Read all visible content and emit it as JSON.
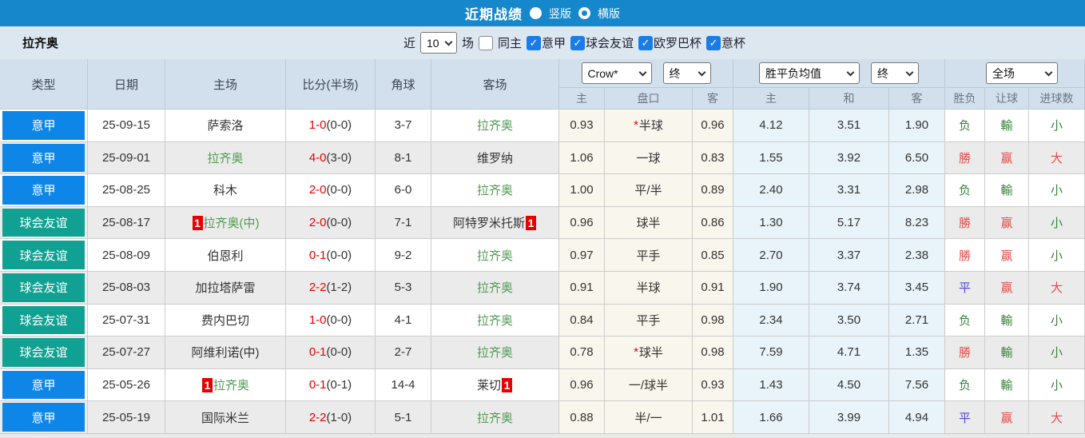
{
  "titlebar": {
    "title": "近期战绩",
    "radio_vertical": "竖版",
    "radio_horizontal": "横版",
    "vertical_selected": true,
    "horizontal_selected": false
  },
  "filterbar": {
    "team": "拉齐奥",
    "recent_label": "近",
    "recent_value": "10",
    "matches_label": "场",
    "same_home_label": "同主",
    "same_home_checked": false,
    "leagues": [
      {
        "label": "意甲",
        "checked": true
      },
      {
        "label": "球会友谊",
        "checked": true
      },
      {
        "label": "欧罗巴杯",
        "checked": true
      },
      {
        "label": "意杯",
        "checked": true
      }
    ]
  },
  "table": {
    "headers": {
      "type": "类型",
      "date": "日期",
      "home": "主场",
      "score": "比分(半场)",
      "corners": "角球",
      "away": "客场"
    },
    "dropdowns": {
      "odds_company": "Crow*",
      "odds_time": "终",
      "mean": "胜平负均值",
      "mean_time": "终",
      "scope": "全场"
    },
    "sub_headers": [
      "主",
      "盘口",
      "客",
      "主",
      "和",
      "客",
      "胜负",
      "让球",
      "进球数"
    ],
    "rows": [
      {
        "type": "意甲",
        "type_key": "serie",
        "date": "25-09-15",
        "home": {
          "name": "萨索洛",
          "green": false
        },
        "score": "1-0",
        "half": "(0-0)",
        "corners": "3-7",
        "away": {
          "name": "拉齐奥",
          "green": true
        },
        "odds_home": "0.93",
        "handicap": "半球",
        "handicap_star": true,
        "odds_away": "0.96",
        "mean_home": "4.12",
        "mean_draw": "3.51",
        "mean_away": "1.90",
        "result": {
          "t": "负",
          "c": "green"
        },
        "handicap_result": {
          "t": "輸",
          "c": "green"
        },
        "goals_result": {
          "t": "小",
          "c": "green"
        }
      },
      {
        "type": "意甲",
        "type_key": "serie",
        "date": "25-09-01",
        "home": {
          "name": "拉齐奥",
          "green": true
        },
        "score": "4-0",
        "half": "(3-0)",
        "corners": "8-1",
        "away": {
          "name": "维罗纳",
          "green": false
        },
        "odds_home": "1.06",
        "handicap": "一球",
        "handicap_star": false,
        "odds_away": "0.83",
        "mean_home": "1.55",
        "mean_draw": "3.92",
        "mean_away": "6.50",
        "result": {
          "t": "勝",
          "c": "red"
        },
        "handicap_result": {
          "t": "赢",
          "c": "red"
        },
        "goals_result": {
          "t": "大",
          "c": "red"
        }
      },
      {
        "type": "意甲",
        "type_key": "serie",
        "date": "25-08-25",
        "home": {
          "name": "科木",
          "green": false
        },
        "score": "2-0",
        "half": "(0-0)",
        "corners": "6-0",
        "away": {
          "name": "拉齐奥",
          "green": true
        },
        "odds_home": "1.00",
        "handicap": "平/半",
        "handicap_star": false,
        "odds_away": "0.89",
        "mean_home": "2.40",
        "mean_draw": "3.31",
        "mean_away": "2.98",
        "result": {
          "t": "负",
          "c": "green"
        },
        "handicap_result": {
          "t": "輸",
          "c": "green"
        },
        "goals_result": {
          "t": "小",
          "c": "green"
        }
      },
      {
        "type": "球会友谊",
        "type_key": "friendly",
        "date": "25-08-17",
        "home": {
          "name": "拉齐奥(中)",
          "green": true,
          "badge_before": "1"
        },
        "score": "2-0",
        "half": "(0-0)",
        "corners": "7-1",
        "away": {
          "name": "阿特罗米托斯",
          "green": false,
          "badge_after": "1"
        },
        "odds_home": "0.96",
        "handicap": "球半",
        "handicap_star": false,
        "odds_away": "0.86",
        "mean_home": "1.30",
        "mean_draw": "5.17",
        "mean_away": "8.23",
        "result": {
          "t": "勝",
          "c": "red"
        },
        "handicap_result": {
          "t": "赢",
          "c": "red"
        },
        "goals_result": {
          "t": "小",
          "c": "green"
        }
      },
      {
        "type": "球会友谊",
        "type_key": "friendly",
        "date": "25-08-09",
        "home": {
          "name": "伯恩利",
          "green": false
        },
        "score": "0-1",
        "half": "(0-0)",
        "corners": "9-2",
        "away": {
          "name": "拉齐奥",
          "green": true
        },
        "odds_home": "0.97",
        "handicap": "平手",
        "handicap_star": false,
        "odds_away": "0.85",
        "mean_home": "2.70",
        "mean_draw": "3.37",
        "mean_away": "2.38",
        "result": {
          "t": "勝",
          "c": "red"
        },
        "handicap_result": {
          "t": "赢",
          "c": "red"
        },
        "goals_result": {
          "t": "小",
          "c": "green"
        }
      },
      {
        "type": "球会友谊",
        "type_key": "friendly",
        "date": "25-08-03",
        "home": {
          "name": "加拉塔萨雷",
          "green": false
        },
        "score": "2-2",
        "half": "(1-2)",
        "corners": "5-3",
        "away": {
          "name": "拉齐奥",
          "green": true
        },
        "odds_home": "0.91",
        "handicap": "半球",
        "handicap_star": false,
        "odds_away": "0.91",
        "mean_home": "1.90",
        "mean_draw": "3.74",
        "mean_away": "3.45",
        "result": {
          "t": "平",
          "c": "blue"
        },
        "handicap_result": {
          "t": "赢",
          "c": "red"
        },
        "goals_result": {
          "t": "大",
          "c": "red"
        }
      },
      {
        "type": "球会友谊",
        "type_key": "friendly",
        "date": "25-07-31",
        "home": {
          "name": "费内巴切",
          "green": false
        },
        "score": "1-0",
        "half": "(0-0)",
        "corners": "4-1",
        "away": {
          "name": "拉齐奥",
          "green": true
        },
        "odds_home": "0.84",
        "handicap": "平手",
        "handicap_star": false,
        "odds_away": "0.98",
        "mean_home": "2.34",
        "mean_draw": "3.50",
        "mean_away": "2.71",
        "result": {
          "t": "负",
          "c": "green"
        },
        "handicap_result": {
          "t": "輸",
          "c": "green"
        },
        "goals_result": {
          "t": "小",
          "c": "green"
        }
      },
      {
        "type": "球会友谊",
        "type_key": "friendly",
        "date": "25-07-27",
        "home": {
          "name": "阿维利诺(中)",
          "green": false
        },
        "score": "0-1",
        "half": "(0-0)",
        "corners": "2-7",
        "away": {
          "name": "拉齐奥",
          "green": true
        },
        "odds_home": "0.78",
        "handicap": "球半",
        "handicap_star": true,
        "odds_away": "0.98",
        "mean_home": "7.59",
        "mean_draw": "4.71",
        "mean_away": "1.35",
        "result": {
          "t": "勝",
          "c": "red"
        },
        "handicap_result": {
          "t": "輸",
          "c": "green"
        },
        "goals_result": {
          "t": "小",
          "c": "green"
        }
      },
      {
        "type": "意甲",
        "type_key": "serie",
        "date": "25-05-26",
        "home": {
          "name": "拉齐奥",
          "green": true,
          "badge_before": "1"
        },
        "score": "0-1",
        "half": "(0-1)",
        "corners": "14-4",
        "away": {
          "name": "莱切",
          "green": false,
          "badge_after": "1"
        },
        "odds_home": "0.96",
        "handicap": "一/球半",
        "handicap_star": false,
        "odds_away": "0.93",
        "mean_home": "1.43",
        "mean_draw": "4.50",
        "mean_away": "7.56",
        "result": {
          "t": "负",
          "c": "green"
        },
        "handicap_result": {
          "t": "輸",
          "c": "green"
        },
        "goals_result": {
          "t": "小",
          "c": "green"
        }
      },
      {
        "type": "意甲",
        "type_key": "serie",
        "date": "25-05-19",
        "home": {
          "name": "国际米兰",
          "green": false
        },
        "score": "2-2",
        "half": "(1-0)",
        "corners": "5-1",
        "away": {
          "name": "拉齐奥",
          "green": true
        },
        "odds_home": "0.88",
        "handicap": "半/一",
        "handicap_star": false,
        "odds_away": "1.01",
        "mean_home": "1.66",
        "mean_draw": "3.99",
        "mean_away": "4.94",
        "result": {
          "t": "平",
          "c": "blue"
        },
        "handicap_result": {
          "t": "赢",
          "c": "red"
        },
        "goals_result": {
          "t": "大",
          "c": "red"
        }
      }
    ]
  },
  "colors": {
    "topbar_blue": "#1787cb",
    "serie_a_blue": "#0e86e8",
    "friendly_teal": "#11a193",
    "team_green": "#4f9a51",
    "score_red": "#e60000",
    "badge_red": "#e60000",
    "result_red": "#e24d4d",
    "result_green": "#38813c",
    "result_blue": "#4f46d6",
    "checkbox_blue": "#1a7ce6"
  }
}
